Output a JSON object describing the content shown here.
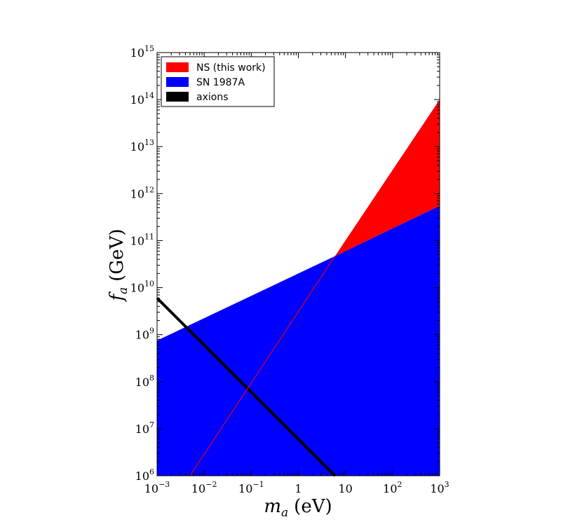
{
  "chart_data": {
    "type": "area",
    "xscale": "log",
    "yscale": "log",
    "xlim": [
      0.001,
      1000
    ],
    "ylim": [
      1000000,
      1000000000000000
    ],
    "xlabel": "m_a (eV)",
    "ylabel": "f_a (GeV)",
    "xlabel_parts": {
      "symbol": "m",
      "subscript": "a",
      "unit": "(eV)"
    },
    "ylabel_parts": {
      "symbol": "f",
      "subscript": "a",
      "unit": "(GeV)"
    },
    "x_tick_labels": [
      {
        "value": 0.001,
        "base": "10",
        "exp": "−3"
      },
      {
        "value": 0.01,
        "base": "10",
        "exp": "−2"
      },
      {
        "value": 0.1,
        "base": "10",
        "exp": "−1"
      },
      {
        "value": 1,
        "base": "1",
        "exp": ""
      },
      {
        "value": 10,
        "base": "10",
        "exp": ""
      },
      {
        "value": 100,
        "base": "10",
        "exp": "2"
      },
      {
        "value": 1000,
        "base": "10",
        "exp": "3"
      }
    ],
    "y_tick_labels": [
      {
        "value": 1000000,
        "base": "10",
        "exp": "6"
      },
      {
        "value": 10000000,
        "base": "10",
        "exp": "7"
      },
      {
        "value": 100000000,
        "base": "10",
        "exp": "8"
      },
      {
        "value": 1000000000,
        "base": "10",
        "exp": "9"
      },
      {
        "value": 10000000000,
        "base": "10",
        "exp": "10"
      },
      {
        "value": 100000000000,
        "base": "10",
        "exp": "11"
      },
      {
        "value": 1000000000000,
        "base": "10",
        "exp": "12"
      },
      {
        "value": 10000000000000,
        "base": "10",
        "exp": "13"
      },
      {
        "value": 100000000000000,
        "base": "10",
        "exp": "14"
      },
      {
        "value": 1000000000000000,
        "base": "10",
        "exp": "15"
      }
    ],
    "series": [
      {
        "name": "NS (this work)",
        "kind": "fill",
        "color": "#ff0000",
        "points": [
          [
            6,
            47000000000
          ],
          [
            1000,
            100000000000000
          ],
          [
            1000,
            550000000000
          ]
        ]
      },
      {
        "name": "SN 1987A",
        "kind": "fill_below",
        "color": "#0000ff",
        "upper": [
          [
            0.001,
            750000000
          ],
          [
            6,
            47000000000
          ],
          [
            1000,
            550000000000
          ]
        ]
      },
      {
        "name": "axions",
        "kind": "line",
        "color": "#000000",
        "width": 4,
        "points": [
          [
            0.001,
            6000000000
          ],
          [
            6,
            1000000
          ]
        ]
      },
      {
        "kind": "line",
        "color": "#ff0000",
        "width": 1,
        "points": [
          [
            0.005,
            1000000
          ],
          [
            6,
            47000000000
          ]
        ]
      }
    ],
    "legend": {
      "position": "top-left",
      "entries": [
        {
          "label": "NS (this work)",
          "color": "#ff0000"
        },
        {
          "label": "SN 1987A",
          "color": "#0000ff"
        },
        {
          "label": "axions",
          "color": "#000000"
        }
      ]
    },
    "grid": false
  }
}
